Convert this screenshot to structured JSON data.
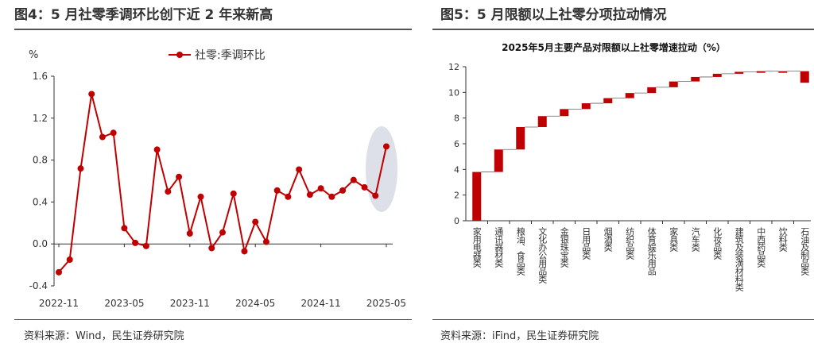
{
  "left": {
    "title": "图4：5 月社零季调环比创下近 2 年来新高",
    "source": "资料来源：Wind，民生证券研究院",
    "unit": "%",
    "chart_data": {
      "type": "line",
      "legend": "社零:季调环比",
      "legend_position": "top",
      "series": [
        {
          "name": "社零:季调环比",
          "color": "#c00000",
          "values": [
            -0.27,
            -0.15,
            0.72,
            1.43,
            1.02,
            1.06,
            0.15,
            0.01,
            -0.02,
            0.9,
            0.5,
            0.64,
            0.1,
            0.45,
            -0.04,
            0.11,
            0.48,
            -0.07,
            0.21,
            0.02,
            0.51,
            0.45,
            0.71,
            0.47,
            0.53,
            0.45,
            0.51,
            0.61,
            0.54,
            0.46,
            0.93
          ]
        }
      ],
      "x_ticks": [
        "2022-11",
        "2023-05",
        "2023-11",
        "2024-05",
        "2024-11",
        "2025-05"
      ],
      "y_ticks": [
        "-0.4",
        "0.0",
        "0.4",
        "0.8",
        "1.2",
        "1.6"
      ],
      "ylim": [
        -0.4,
        1.6
      ],
      "highlight": "last point circled with grey ellipse"
    }
  },
  "right": {
    "title": "图5：5 月限额以上社零分项拉动情况",
    "source": "资料来源：iFind，民生证券研究院",
    "chart_data": {
      "type": "bar",
      "subtype": "waterfall",
      "title": "2025年5月主要产品对限额以上社零增速拉动（%）",
      "color": "#c00000",
      "categories": [
        "家用电器类",
        "通讯器材类",
        "粮油、食品类",
        "文化办公用品类",
        "金银珠宝类",
        "日用品类",
        "烟酒类",
        "纺织品类",
        "体育娱乐用品",
        "家具类",
        "汽车类",
        "化妆品类",
        "建筑及装潢材料类",
        "中西药品类",
        "饮料类",
        "石油及制品类"
      ],
      "values": [
        3.8,
        1.75,
        1.75,
        0.85,
        0.55,
        0.45,
        0.4,
        0.4,
        0.45,
        0.45,
        0.35,
        0.25,
        0.15,
        0.05,
        0.0,
        -0.9
      ],
      "y_ticks": [
        "0",
        "2",
        "4",
        "6",
        "8",
        "10",
        "12"
      ],
      "ylim": [
        0,
        12
      ]
    }
  }
}
